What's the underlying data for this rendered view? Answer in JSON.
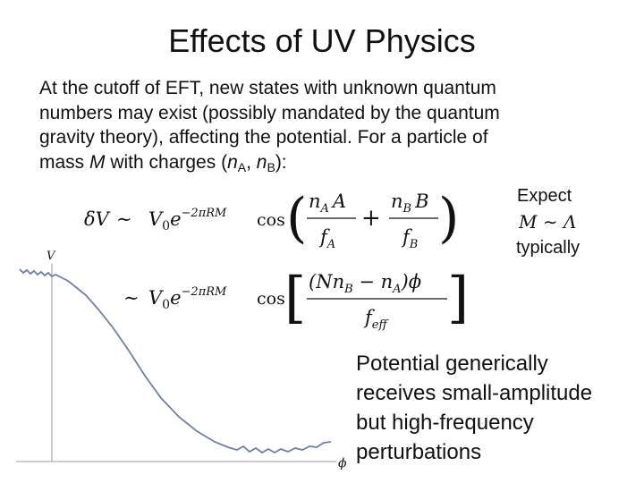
{
  "title": "Effects of UV Physics",
  "body": {
    "lines": [
      "At the cutoff of EFT, new states with unknown quantum",
      "numbers may exist (possibly mandated by the quantum",
      "gravity theory), affecting the potential. For a particle of"
    ],
    "last_line": {
      "start": "mass ",
      "mass": "M",
      "middle": " with charges (",
      "n1": "n",
      "sub1": "A",
      "comma": ", ",
      "n2": "n",
      "sub2": "B",
      "end": "):"
    }
  },
  "equation_1": {
    "lhs": "δV",
    "sim": "∼",
    "amp": "V",
    "amp_sub": "0",
    "base": "e",
    "exponent": "−2πRM",
    "func": "cos",
    "open": "(",
    "close": ")",
    "frac1_num": "n",
    "frac1_num_sub": "A",
    "frac1_num_var": "A",
    "frac1_den": "f",
    "frac1_den_sub": "A",
    "plus": "+",
    "frac2_num": "n",
    "frac2_num_sub": "B",
    "frac2_num_var": "B",
    "frac2_den": "f",
    "frac2_den_sub": "B"
  },
  "equation_2": {
    "sim": "∼",
    "amp": "V",
    "amp_sub": "0",
    "base": "e",
    "exponent": "−2πRM",
    "func": "cos",
    "open": "[",
    "close": "]",
    "num_a": "(Nn",
    "num_a_sub": "B",
    "num_b": " − n",
    "num_b_sub": "A",
    "num_c": ")ϕ",
    "den": "f",
    "den_sub": "eff"
  },
  "side_note": {
    "top": "Expect",
    "relation": "M ∼ Λ",
    "bottom": "typically"
  },
  "plot": {
    "y_label": "V",
    "x_label": "ϕ"
  },
  "conclusion": {
    "lines": [
      "Potential generically",
      "receives small-amplitude",
      "but high-frequency",
      "perturbations"
    ]
  }
}
